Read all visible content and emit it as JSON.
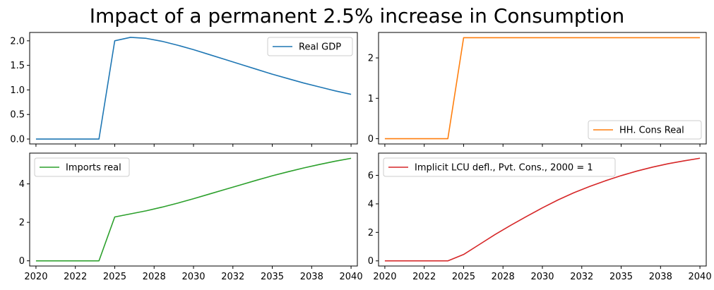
{
  "title": "Impact of a permanent 2.5% increase in Consumption",
  "chart_data": [
    {
      "type": "line",
      "title": "",
      "series": [
        {
          "name": "Real GDP",
          "color": "#1f77b4",
          "x": [
            2020,
            2021,
            2022,
            2023,
            2024,
            2025,
            2026,
            2027,
            2028,
            2029,
            2030,
            2031,
            2032,
            2033,
            2034,
            2035,
            2036,
            2037,
            2038,
            2039,
            2040
          ],
          "values": [
            0,
            0,
            0,
            0,
            0,
            2.0,
            2.07,
            2.05,
            1.99,
            1.91,
            1.82,
            1.72,
            1.62,
            1.52,
            1.42,
            1.32,
            1.23,
            1.14,
            1.06,
            0.98,
            0.91
          ]
        }
      ],
      "xlim": [
        2019.6,
        2040.4
      ],
      "ylim": [
        -0.1,
        2.17
      ],
      "yticks": [
        0.0,
        0.5,
        1.0,
        1.5,
        2.0
      ],
      "ytick_labels": [
        "0.0",
        "0.5",
        "1.0",
        "1.5",
        "2.0"
      ],
      "xticks": [
        2020,
        2022.5,
        2025,
        2027.5,
        2030,
        2032.5,
        2035,
        2037.5,
        2040
      ],
      "xtick_labels": [],
      "legend": "top-right"
    },
    {
      "type": "line",
      "title": "",
      "series": [
        {
          "name": "HH. Cons Real",
          "color": "#ff7f0e",
          "x": [
            2020,
            2021,
            2022,
            2023,
            2024,
            2025,
            2026,
            2027,
            2028,
            2029,
            2030,
            2031,
            2032,
            2033,
            2034,
            2035,
            2036,
            2037,
            2038,
            2039,
            2040
          ],
          "values": [
            0,
            0,
            0,
            0,
            0,
            2.5,
            2.5,
            2.5,
            2.5,
            2.5,
            2.5,
            2.5,
            2.5,
            2.5,
            2.5,
            2.5,
            2.5,
            2.5,
            2.5,
            2.5,
            2.5
          ]
        }
      ],
      "xlim": [
        2019.6,
        2040.4
      ],
      "ylim": [
        -0.13,
        2.63
      ],
      "yticks": [
        0,
        1,
        2
      ],
      "ytick_labels": [
        "0",
        "1",
        "2"
      ],
      "xticks": [
        2020,
        2022.5,
        2025,
        2027.5,
        2030,
        2032.5,
        2035,
        2037.5,
        2040
      ],
      "xtick_labels": [],
      "legend": "bottom-right"
    },
    {
      "type": "line",
      "title": "",
      "series": [
        {
          "name": "Imports real",
          "color": "#2ca02c",
          "x": [
            2020,
            2021,
            2022,
            2023,
            2024,
            2025,
            2026,
            2027,
            2028,
            2029,
            2030,
            2031,
            2032,
            2033,
            2034,
            2035,
            2036,
            2037,
            2038,
            2039,
            2040
          ],
          "values": [
            0,
            0,
            0,
            0,
            0,
            2.28,
            2.44,
            2.6,
            2.79,
            3.0,
            3.23,
            3.47,
            3.71,
            3.95,
            4.19,
            4.42,
            4.63,
            4.83,
            5.01,
            5.18,
            5.33
          ]
        }
      ],
      "xlim": [
        2019.6,
        2040.4
      ],
      "ylim": [
        -0.27,
        5.6
      ],
      "yticks": [
        0,
        2,
        4
      ],
      "ytick_labels": [
        "0",
        "2",
        "4"
      ],
      "xticks": [
        2020,
        2022.5,
        2025,
        2027.5,
        2030,
        2032.5,
        2035,
        2037.5,
        2040
      ],
      "xtick_labels": [
        "2020",
        "2022",
        "2025",
        "2028",
        "2030",
        "2032",
        "2035",
        "2038",
        "2040"
      ],
      "legend": "top-left"
    },
    {
      "type": "line",
      "title": "",
      "series": [
        {
          "name": "Implicit LCU defl., Pvt. Cons., 2000 = 1",
          "color": "#d62728",
          "x": [
            2020,
            2021,
            2022,
            2023,
            2024,
            2025,
            2026,
            2027,
            2028,
            2029,
            2030,
            2031,
            2032,
            2033,
            2034,
            2035,
            2036,
            2037,
            2038,
            2039,
            2040
          ],
          "values": [
            0,
            0,
            0,
            0,
            0,
            0.45,
            1.15,
            1.85,
            2.5,
            3.12,
            3.72,
            4.28,
            4.78,
            5.22,
            5.62,
            5.98,
            6.3,
            6.58,
            6.82,
            7.02,
            7.2
          ]
        }
      ],
      "xlim": [
        2019.6,
        2040.4
      ],
      "ylim": [
        -0.36,
        7.56
      ],
      "yticks": [
        0,
        2,
        4,
        6
      ],
      "ytick_labels": [
        "0",
        "2",
        "4",
        "6"
      ],
      "xticks": [
        2020,
        2022.5,
        2025,
        2027.5,
        2030,
        2032.5,
        2035,
        2037.5,
        2040
      ],
      "xtick_labels": [
        "2020",
        "2022",
        "2025",
        "2028",
        "2030",
        "2032",
        "2035",
        "2038",
        "2040"
      ],
      "legend": "top-left"
    }
  ]
}
